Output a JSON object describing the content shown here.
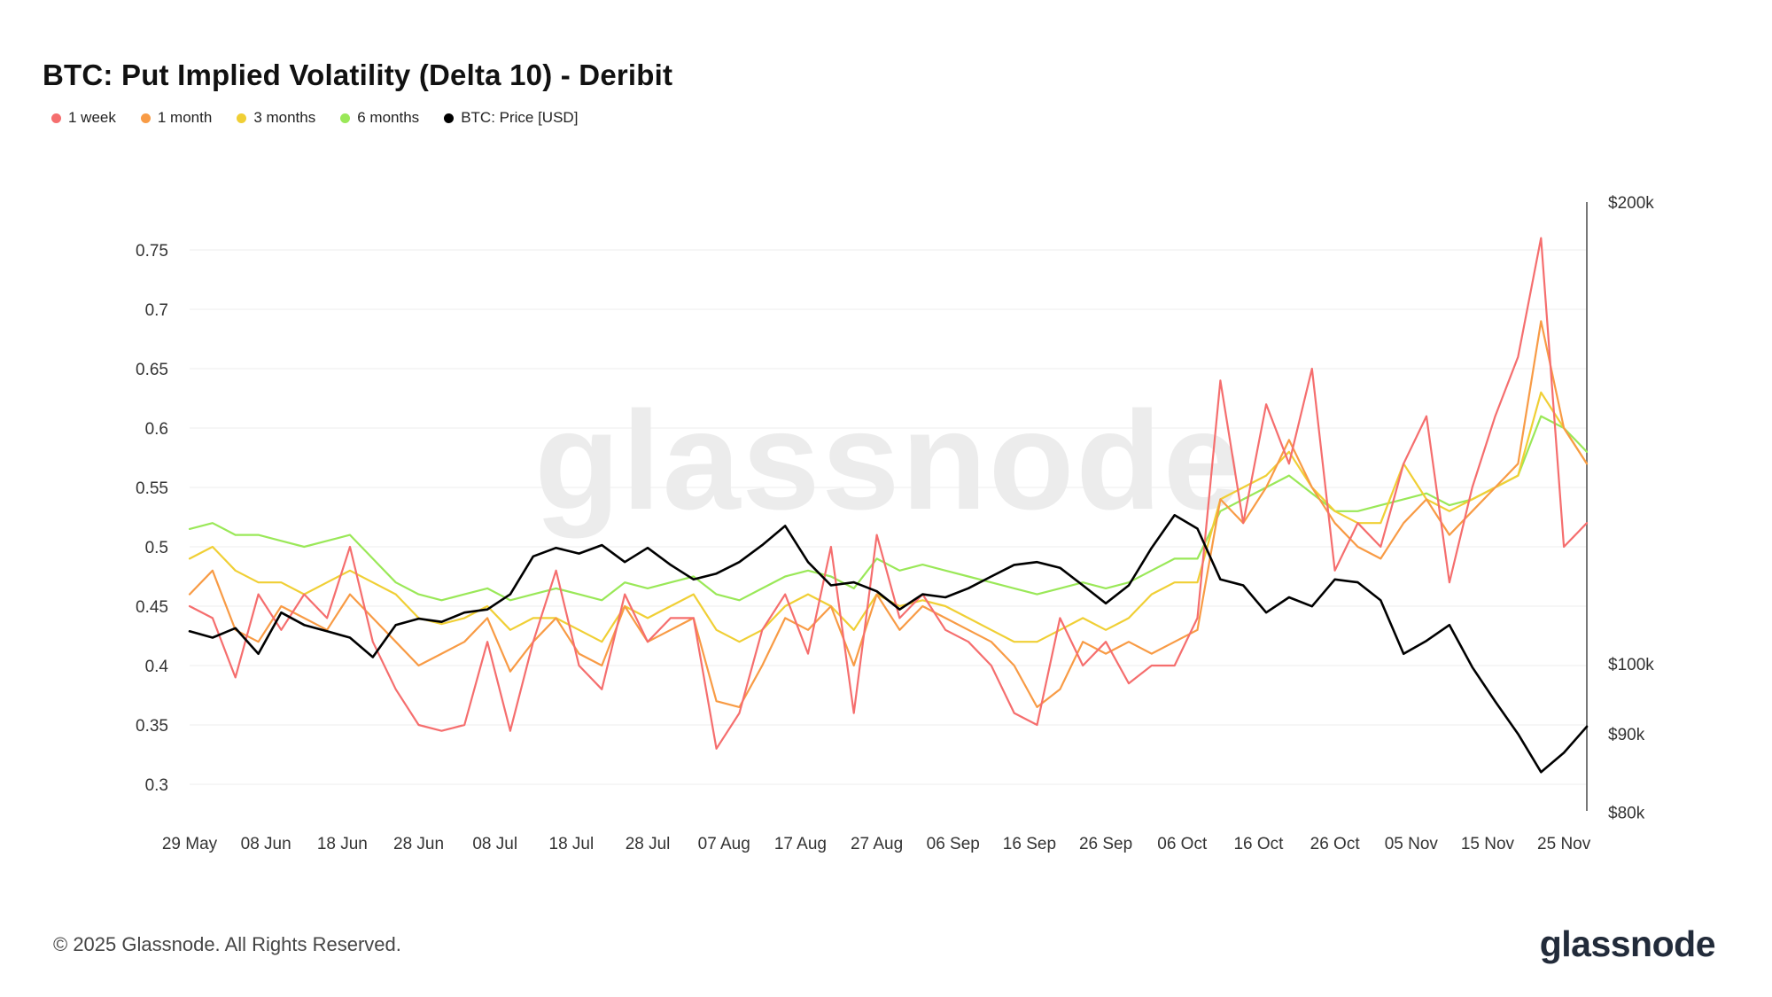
{
  "header": {
    "title": "BTC: Put Implied Volatility (Delta 10) - Deribit"
  },
  "legend": [
    {
      "label": "1 week",
      "color": "#f56e6e"
    },
    {
      "label": "1 month",
      "color": "#f89b45"
    },
    {
      "label": "3 months",
      "color": "#f0cf35"
    },
    {
      "label": "6 months",
      "color": "#9ae858"
    },
    {
      "label": "BTC: Price [USD]",
      "color": "#000000"
    }
  ],
  "watermark": {
    "text": "glassnode"
  },
  "footer": {
    "copyright": "© 2025 Glassnode. All Rights Reserved.",
    "logo": "glassnode"
  },
  "chart_data": {
    "type": "line",
    "title": "BTC: Put Implied Volatility (Delta 10) - Deribit",
    "day_step": 3,
    "total_days": 183,
    "x_tick_interval_days": 10,
    "x": [
      "29 May",
      "01 Jun",
      "04 Jun",
      "07 Jun",
      "10 Jun",
      "13 Jun",
      "16 Jun",
      "19 Jun",
      "22 Jun",
      "25 Jun",
      "28 Jun",
      "01 Jul",
      "04 Jul",
      "07 Jul",
      "10 Jul",
      "13 Jul",
      "16 Jul",
      "19 Jul",
      "22 Jul",
      "25 Jul",
      "28 Jul",
      "31 Jul",
      "03 Aug",
      "06 Aug",
      "09 Aug",
      "12 Aug",
      "15 Aug",
      "18 Aug",
      "21 Aug",
      "24 Aug",
      "27 Aug",
      "30 Aug",
      "02 Sep",
      "05 Sep",
      "08 Sep",
      "11 Sep",
      "14 Sep",
      "17 Sep",
      "20 Sep",
      "23 Sep",
      "26 Sep",
      "29 Sep",
      "02 Oct",
      "05 Oct",
      "08 Oct",
      "11 Oct",
      "14 Oct",
      "17 Oct",
      "20 Oct",
      "23 Oct",
      "26 Oct",
      "29 Oct",
      "01 Nov",
      "04 Nov",
      "07 Nov",
      "10 Nov",
      "13 Nov",
      "16 Nov",
      "19 Nov",
      "22 Nov",
      "25 Nov",
      "28 Nov"
    ],
    "x_ticks": [
      "29 May",
      "08 Jun",
      "18 Jun",
      "28 Jun",
      "08 Jul",
      "18 Jul",
      "28 Jul",
      "07 Aug",
      "17 Aug",
      "27 Aug",
      "06 Sep",
      "16 Sep",
      "26 Sep",
      "06 Oct",
      "16 Oct",
      "26 Oct",
      "05 Nov",
      "15 Nov",
      "25 Nov"
    ],
    "left_axis": {
      "ticks": [
        0.3,
        0.35,
        0.4,
        0.45,
        0.5,
        0.55,
        0.6,
        0.65,
        0.7,
        0.75
      ],
      "range": [
        0.28,
        0.79
      ]
    },
    "right_axis": {
      "scale": "log",
      "unit": "USD thousands",
      "ticks": [
        {
          "label": "$200k",
          "value": 200
        },
        {
          "label": "$100k",
          "value": 100
        },
        {
          "label": "$90k",
          "value": 90
        },
        {
          "label": "$80k",
          "value": 80
        }
      ]
    },
    "series": [
      {
        "name": "1 week",
        "color": "#f56e6e",
        "axis": "left",
        "z": 4,
        "values": [
          0.45,
          0.44,
          0.39,
          0.46,
          0.43,
          0.46,
          0.44,
          0.5,
          0.42,
          0.38,
          0.35,
          0.345,
          0.35,
          0.42,
          0.345,
          0.42,
          0.48,
          0.4,
          0.38,
          0.46,
          0.42,
          0.44,
          0.44,
          0.33,
          0.36,
          0.43,
          0.46,
          0.41,
          0.5,
          0.36,
          0.51,
          0.44,
          0.46,
          0.43,
          0.42,
          0.4,
          0.36,
          0.35,
          0.44,
          0.4,
          0.42,
          0.385,
          0.4,
          0.4,
          0.44,
          0.64,
          0.52,
          0.62,
          0.57,
          0.65,
          0.48,
          0.52,
          0.5,
          0.57,
          0.61,
          0.47,
          0.55,
          0.61,
          0.66,
          0.76,
          0.5,
          0.52
        ]
      },
      {
        "name": "1 month",
        "color": "#f89b45",
        "axis": "left",
        "z": 3,
        "values": [
          0.46,
          0.48,
          0.43,
          0.42,
          0.45,
          0.44,
          0.43,
          0.46,
          0.44,
          0.42,
          0.4,
          0.41,
          0.42,
          0.44,
          0.395,
          0.42,
          0.44,
          0.41,
          0.4,
          0.45,
          0.42,
          0.43,
          0.44,
          0.37,
          0.365,
          0.4,
          0.44,
          0.43,
          0.45,
          0.4,
          0.46,
          0.43,
          0.45,
          0.44,
          0.43,
          0.42,
          0.4,
          0.365,
          0.38,
          0.42,
          0.41,
          0.42,
          0.41,
          0.42,
          0.43,
          0.54,
          0.52,
          0.55,
          0.59,
          0.55,
          0.52,
          0.5,
          0.49,
          0.52,
          0.54,
          0.51,
          0.53,
          0.55,
          0.57,
          0.69,
          0.6,
          0.57
        ]
      },
      {
        "name": "3 months",
        "color": "#f0cf35",
        "axis": "left",
        "z": 2,
        "values": [
          0.49,
          0.5,
          0.48,
          0.47,
          0.47,
          0.46,
          0.47,
          0.48,
          0.47,
          0.46,
          0.44,
          0.435,
          0.44,
          0.45,
          0.43,
          0.44,
          0.44,
          0.43,
          0.42,
          0.45,
          0.44,
          0.45,
          0.46,
          0.43,
          0.42,
          0.43,
          0.45,
          0.46,
          0.45,
          0.43,
          0.46,
          0.45,
          0.455,
          0.45,
          0.44,
          0.43,
          0.42,
          0.42,
          0.43,
          0.44,
          0.43,
          0.44,
          0.46,
          0.47,
          0.47,
          0.54,
          0.55,
          0.56,
          0.58,
          0.55,
          0.53,
          0.52,
          0.52,
          0.57,
          0.54,
          0.53,
          0.54,
          0.55,
          0.56,
          0.63,
          0.6,
          0.57
        ]
      },
      {
        "name": "6 months",
        "color": "#9ae858",
        "axis": "left",
        "z": 1,
        "values": [
          0.515,
          0.52,
          0.51,
          0.51,
          0.505,
          0.5,
          0.505,
          0.51,
          0.49,
          0.47,
          0.46,
          0.455,
          0.46,
          0.465,
          0.455,
          0.46,
          0.465,
          0.46,
          0.455,
          0.47,
          0.465,
          0.47,
          0.475,
          0.46,
          0.455,
          0.465,
          0.475,
          0.48,
          0.475,
          0.465,
          0.49,
          0.48,
          0.485,
          0.48,
          0.475,
          0.47,
          0.465,
          0.46,
          0.465,
          0.47,
          0.465,
          0.47,
          0.48,
          0.49,
          0.49,
          0.53,
          0.54,
          0.55,
          0.56,
          0.545,
          0.53,
          0.53,
          0.535,
          0.54,
          0.545,
          0.535,
          0.54,
          0.55,
          0.56,
          0.61,
          0.6,
          0.58
        ]
      },
      {
        "name": "BTC: Price [USD]",
        "color": "#000000",
        "axis": "right",
        "z": 5,
        "values": [
          105,
          104,
          105.5,
          101.5,
          108,
          106,
          105,
          104,
          101,
          106,
          107,
          106.5,
          108,
          108.5,
          111,
          117.5,
          119,
          118,
          119.5,
          116.5,
          119,
          116,
          113.5,
          114.5,
          116.5,
          119.5,
          123,
          116.5,
          112.5,
          113,
          111.5,
          108.5,
          111,
          110.5,
          112,
          114,
          116,
          116.5,
          115.5,
          112.5,
          109.5,
          112.5,
          119,
          125,
          122.5,
          113.5,
          112.5,
          108,
          110.5,
          109,
          113.5,
          113,
          110,
          101.5,
          103.5,
          106,
          99.5,
          94.5,
          90,
          85,
          87.5,
          91
        ]
      }
    ]
  }
}
